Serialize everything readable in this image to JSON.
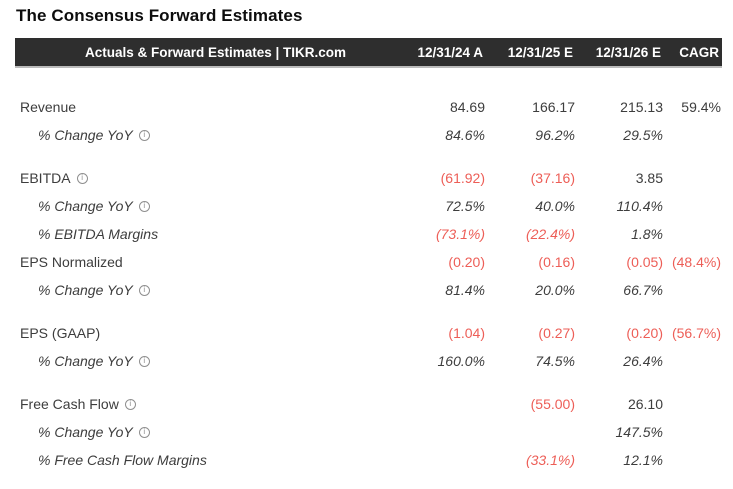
{
  "title": "The Consensus Forward Estimates",
  "colors": {
    "negative_red": "#ed5e57",
    "header_bg": "#2e2e2e",
    "header_text": "#ffffff",
    "body_text": "#3d3d3d"
  },
  "table": {
    "header": {
      "label": "Actuals & Forward Estimates | TIKR.com",
      "columns": [
        "12/31/24 A",
        "12/31/25 E",
        "12/31/26 E",
        "CAGR"
      ]
    },
    "rows": [
      {
        "label": "Revenue",
        "style": "main",
        "info": false,
        "gap": false,
        "cells": [
          {
            "t": "84.69",
            "neg": false
          },
          {
            "t": "166.17",
            "neg": false
          },
          {
            "t": "215.13",
            "neg": false
          },
          {
            "t": "59.4%",
            "neg": false
          }
        ]
      },
      {
        "label": "% Change YoY",
        "style": "sub",
        "info": true,
        "gap": false,
        "cells": [
          {
            "t": "84.6%",
            "neg": false
          },
          {
            "t": "96.2%",
            "neg": false
          },
          {
            "t": "29.5%",
            "neg": false
          },
          {
            "t": "",
            "neg": false
          }
        ]
      },
      {
        "label": "EBITDA",
        "style": "main",
        "info": true,
        "gap": true,
        "cells": [
          {
            "t": "(61.92)",
            "neg": true
          },
          {
            "t": "(37.16)",
            "neg": true
          },
          {
            "t": "3.85",
            "neg": false
          },
          {
            "t": "",
            "neg": false
          }
        ]
      },
      {
        "label": "% Change YoY",
        "style": "sub",
        "info": true,
        "gap": false,
        "cells": [
          {
            "t": "72.5%",
            "neg": false
          },
          {
            "t": "40.0%",
            "neg": false
          },
          {
            "t": "110.4%",
            "neg": false
          },
          {
            "t": "",
            "neg": false
          }
        ]
      },
      {
        "label": "% EBITDA Margins",
        "style": "sub",
        "info": false,
        "gap": false,
        "cells": [
          {
            "t": "(73.1%)",
            "neg": true
          },
          {
            "t": "(22.4%)",
            "neg": true
          },
          {
            "t": "1.8%",
            "neg": false
          },
          {
            "t": "",
            "neg": false
          }
        ]
      },
      {
        "label": "EPS Normalized",
        "style": "main",
        "info": false,
        "gap": false,
        "cells": [
          {
            "t": "(0.20)",
            "neg": true
          },
          {
            "t": "(0.16)",
            "neg": true
          },
          {
            "t": "(0.05)",
            "neg": true
          },
          {
            "t": "(48.4%)",
            "neg": true
          }
        ]
      },
      {
        "label": "% Change YoY",
        "style": "sub",
        "info": true,
        "gap": false,
        "cells": [
          {
            "t": "81.4%",
            "neg": false
          },
          {
            "t": "20.0%",
            "neg": false
          },
          {
            "t": "66.7%",
            "neg": false
          },
          {
            "t": "",
            "neg": false
          }
        ]
      },
      {
        "label": "EPS (GAAP)",
        "style": "main",
        "info": false,
        "gap": true,
        "cells": [
          {
            "t": "(1.04)",
            "neg": true
          },
          {
            "t": "(0.27)",
            "neg": true
          },
          {
            "t": "(0.20)",
            "neg": true
          },
          {
            "t": "(56.7%)",
            "neg": true
          }
        ]
      },
      {
        "label": "% Change YoY",
        "style": "sub",
        "info": true,
        "gap": false,
        "cells": [
          {
            "t": "160.0%",
            "neg": false
          },
          {
            "t": "74.5%",
            "neg": false
          },
          {
            "t": "26.4%",
            "neg": false
          },
          {
            "t": "",
            "neg": false
          }
        ]
      },
      {
        "label": "Free Cash Flow",
        "style": "main",
        "info": true,
        "gap": true,
        "cells": [
          {
            "t": "",
            "neg": false
          },
          {
            "t": "(55.00)",
            "neg": true
          },
          {
            "t": "26.10",
            "neg": false
          },
          {
            "t": "",
            "neg": false
          }
        ]
      },
      {
        "label": "% Change YoY",
        "style": "sub",
        "info": true,
        "gap": false,
        "cells": [
          {
            "t": "",
            "neg": false
          },
          {
            "t": "",
            "neg": false
          },
          {
            "t": "147.5%",
            "neg": false
          },
          {
            "t": "",
            "neg": false
          }
        ]
      },
      {
        "label": "% Free Cash Flow Margins",
        "style": "sub",
        "info": false,
        "gap": false,
        "cells": [
          {
            "t": "",
            "neg": false
          },
          {
            "t": "(33.1%)",
            "neg": true
          },
          {
            "t": "12.1%",
            "neg": false
          },
          {
            "t": "",
            "neg": false
          }
        ]
      }
    ],
    "info_icon_glyph": "i"
  },
  "chart_data": {
    "type": "table",
    "title": "The Consensus Forward Estimates",
    "source_label": "Actuals & Forward Estimates | TIKR.com",
    "columns": [
      "12/31/24 A",
      "12/31/25 E",
      "12/31/26 E",
      "CAGR"
    ],
    "rows": [
      {
        "label": "Revenue",
        "values": [
          "84.69",
          "166.17",
          "215.13",
          "59.4%"
        ]
      },
      {
        "label": "% Change YoY",
        "values": [
          "84.6%",
          "96.2%",
          "29.5%",
          ""
        ]
      },
      {
        "label": "EBITDA",
        "values": [
          "(61.92)",
          "(37.16)",
          "3.85",
          ""
        ]
      },
      {
        "label": "% Change YoY",
        "values": [
          "72.5%",
          "40.0%",
          "110.4%",
          ""
        ]
      },
      {
        "label": "% EBITDA Margins",
        "values": [
          "(73.1%)",
          "(22.4%)",
          "1.8%",
          ""
        ]
      },
      {
        "label": "EPS Normalized",
        "values": [
          "(0.20)",
          "(0.16)",
          "(0.05)",
          "(48.4%)"
        ]
      },
      {
        "label": "% Change YoY",
        "values": [
          "81.4%",
          "20.0%",
          "66.7%",
          ""
        ]
      },
      {
        "label": "EPS (GAAP)",
        "values": [
          "(1.04)",
          "(0.27)",
          "(0.20)",
          "(56.7%)"
        ]
      },
      {
        "label": "% Change YoY",
        "values": [
          "160.0%",
          "74.5%",
          "26.4%",
          ""
        ]
      },
      {
        "label": "Free Cash Flow",
        "values": [
          "",
          "(55.00)",
          "26.10",
          ""
        ]
      },
      {
        "label": "% Change YoY",
        "values": [
          "",
          "",
          "147.5%",
          ""
        ]
      },
      {
        "label": "% Free Cash Flow Margins",
        "values": [
          "",
          "(33.1%)",
          "12.1%",
          ""
        ]
      }
    ],
    "notes": "Parenthesized values rendered in red (negative). Sub-rows are italic."
  }
}
